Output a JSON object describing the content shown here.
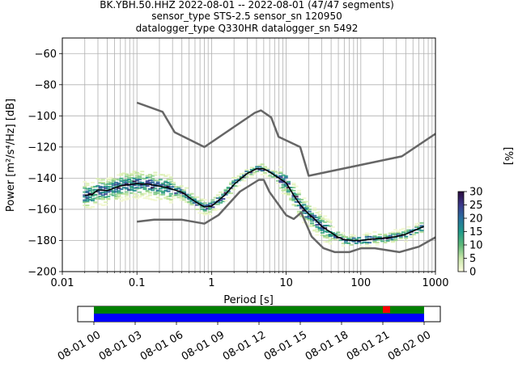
{
  "chart_data": {
    "type": "line",
    "title_lines": [
      "BK.YBH.50.HHZ   2022-08-01 -- 2022-08-01  (47/47 segments)",
      "sensor_type STS-2.5 sensor_sn 120950",
      "datalogger_type Q330HR datalogger_sn 5492"
    ],
    "xlabel": "Period [s]",
    "ylabel": "Power [m²/s⁴/Hz] [dB]",
    "xscale": "log",
    "xlim": [
      0.01,
      1000
    ],
    "ylim": [
      -200,
      -50
    ],
    "grid": true,
    "x_ticks": [
      0.01,
      0.1,
      1,
      10,
      100,
      1000
    ],
    "x_tick_labels": [
      "0.01",
      "0.1",
      "1",
      "10",
      "100",
      "1000"
    ],
    "y_ticks": [
      -200,
      -180,
      -160,
      -140,
      -120,
      -100,
      -80,
      -60
    ],
    "y_tick_labels": [
      "−200",
      "−180",
      "−160",
      "−140",
      "−120",
      "−100",
      "−80",
      "−60"
    ],
    "colors": {
      "model": "#666666",
      "mean": "#000000"
    },
    "series": [
      {
        "role": "new-high-noise-model",
        "x": [
          0.1,
          0.22,
          0.32,
          0.8,
          3.8,
          4.6,
          6.3,
          7.9,
          15.4,
          20,
          354.8,
          1000
        ],
        "y": [
          -91.5,
          -97.4,
          -110.5,
          -120,
          -98,
          -96.5,
          -101,
          -113.5,
          -120,
          -138.5,
          -126,
          -111.5
        ]
      },
      {
        "role": "new-low-noise-model",
        "x": [
          0.1,
          0.17,
          0.4,
          0.8,
          1.24,
          2.4,
          4.3,
          5,
          6,
          10,
          12.6,
          15.9,
          21.9,
          31.6,
          45,
          70,
          101,
          154,
          328,
          600,
          1000
        ],
        "y": [
          -168,
          -166.7,
          -166.7,
          -169.2,
          -163.7,
          -148.6,
          -141.1,
          -141.1,
          -149,
          -163.8,
          -166.2,
          -162.1,
          -177.5,
          -185,
          -187.5,
          -187.5,
          -185,
          -185,
          -187.5,
          -184,
          -178
        ]
      },
      {
        "role": "mean",
        "x": [
          0.02,
          0.025,
          0.03,
          0.04,
          0.06,
          0.1,
          0.15,
          0.25,
          0.4,
          0.6,
          0.8,
          1,
          1.5,
          2,
          3,
          4,
          5,
          6,
          8,
          10,
          13,
          16,
          20,
          25,
          30,
          40,
          50,
          60,
          80,
          100,
          150,
          200,
          300,
          400,
          500,
          700
        ],
        "y": [
          -151,
          -150.5,
          -147.5,
          -148,
          -145,
          -143.5,
          -144,
          -146,
          -149,
          -155,
          -158.5,
          -158,
          -151,
          -144,
          -137,
          -134,
          -134,
          -136,
          -140,
          -143,
          -152,
          -158,
          -163,
          -167,
          -171,
          -175,
          -178,
          -179.5,
          -180,
          -180,
          -179,
          -178.5,
          -177.5,
          -176,
          -174,
          -171
        ]
      }
    ],
    "colorbar": {
      "label": "[%]",
      "min": 0,
      "max": 30,
      "ticks": [
        0,
        5,
        10,
        15,
        20,
        25,
        30
      ]
    },
    "timeline": {
      "tick_labels": [
        "08-01 00",
        "08-01 03",
        "08-01 06",
        "08-01 09",
        "08-01 12",
        "08-01 15",
        "08-01 18",
        "08-01 21",
        "08-02 00"
      ],
      "colors": {
        "top": "#008000",
        "bottom": "#0000ff",
        "marker": "#ff0000"
      }
    }
  }
}
